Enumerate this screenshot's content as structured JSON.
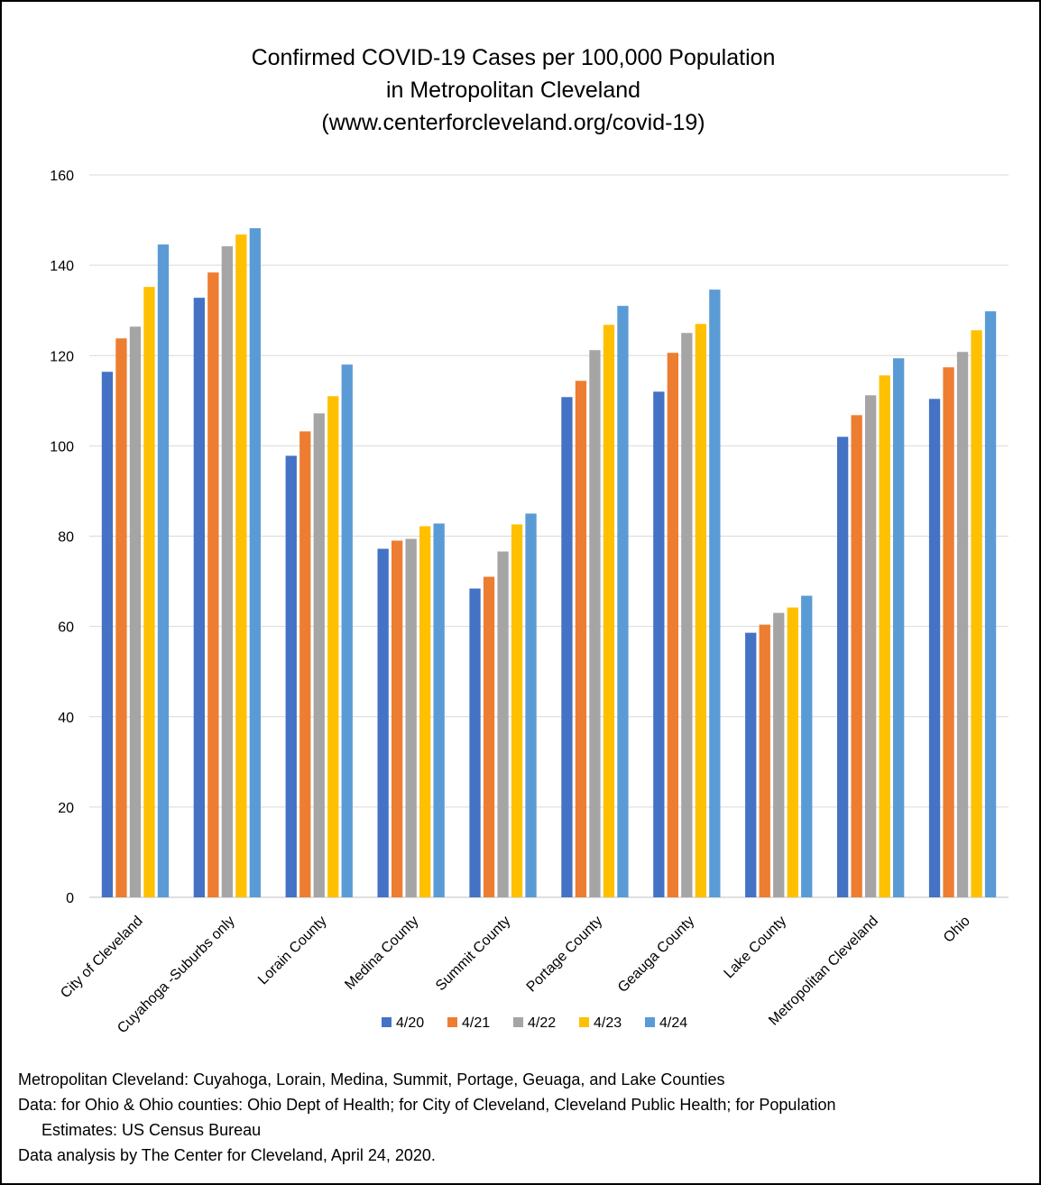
{
  "chart_data": {
    "type": "bar",
    "title_lines": [
      "Confirmed COVID-19 Cases per 100,000 Population",
      "in Metropolitan Cleveland",
      "(www.centerforcleveland.org/covid-19)"
    ],
    "categories": [
      "City of Cleveland",
      "Cuyahoga -Suburbs only",
      "Lorain County",
      "Medina County",
      "Summit County",
      "Portage County",
      "Geauga County",
      "Lake County",
      "Metropolitan Cleveland",
      "Ohio"
    ],
    "series": [
      {
        "name": "4/20",
        "color": "#4472C4",
        "values": [
          116.4,
          132.8,
          97.8,
          77.2,
          68.4,
          110.8,
          112.0,
          58.6,
          102.0,
          110.4
        ]
      },
      {
        "name": "4/21",
        "color": "#ED7D31",
        "values": [
          123.8,
          138.4,
          103.2,
          79.0,
          71.0,
          114.4,
          120.6,
          60.4,
          106.8,
          117.4
        ]
      },
      {
        "name": "4/22",
        "color": "#A5A5A5",
        "values": [
          126.4,
          144.2,
          107.2,
          79.4,
          76.6,
          121.2,
          125.0,
          63.0,
          111.2,
          120.8
        ]
      },
      {
        "name": "4/23",
        "color": "#FFC000",
        "values": [
          135.2,
          146.8,
          111.0,
          82.2,
          82.6,
          126.8,
          127.0,
          64.2,
          115.6,
          125.6
        ]
      },
      {
        "name": "4/24",
        "color": "#5B9BD5",
        "values": [
          144.6,
          148.2,
          118.0,
          82.8,
          85.0,
          131.0,
          134.6,
          66.8,
          119.4,
          129.8
        ]
      }
    ],
    "ylim": [
      0,
      160
    ],
    "yticks": [
      0,
      20,
      40,
      60,
      80,
      100,
      120,
      140,
      160
    ],
    "xlabel": "",
    "ylabel": "",
    "grid": true,
    "legend_position": "bottom"
  },
  "notes": {
    "metro_definition": "Metropolitan Cleveland:   Cuyahoga, Lorain, Medina, Summit, Portage, Geuaga, and Lake Counties",
    "data_sources_line1": "Data: for Ohio & Ohio counties: Ohio Dept of Health; for City of Cleveland, Cleveland Public Health; for Population",
    "data_sources_line2": "Estimates: US Census Bureau",
    "analysis_credit": "Data analysis by The Center for Cleveland, April 24, 2020."
  }
}
